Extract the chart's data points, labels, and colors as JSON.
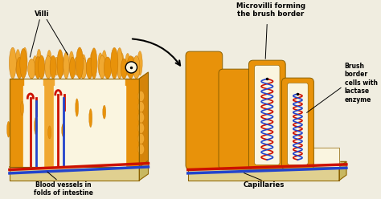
{
  "bg_color": "#f0ede0",
  "orange_main": "#E8920A",
  "orange_dark": "#C07000",
  "orange_light": "#F0A830",
  "orange_mid": "#D4840A",
  "cream": "#F5ECC8",
  "cream_light": "#FAF5E0",
  "red_vessel": "#CC1100",
  "blue_vessel": "#2244CC",
  "tan_base": "#C8B860",
  "tan_light": "#E0D090",
  "outline_color": "#8B6000",
  "labels": {
    "villi": "Villi",
    "blood_vessels": "Blood vessels in\nfolds of intestine",
    "microvilli": "Microvilli forming\nthe brush border",
    "brush_border": "Brush\nborder\ncells with\nlactase\nenzyme",
    "capillaries": "Capillaries"
  }
}
